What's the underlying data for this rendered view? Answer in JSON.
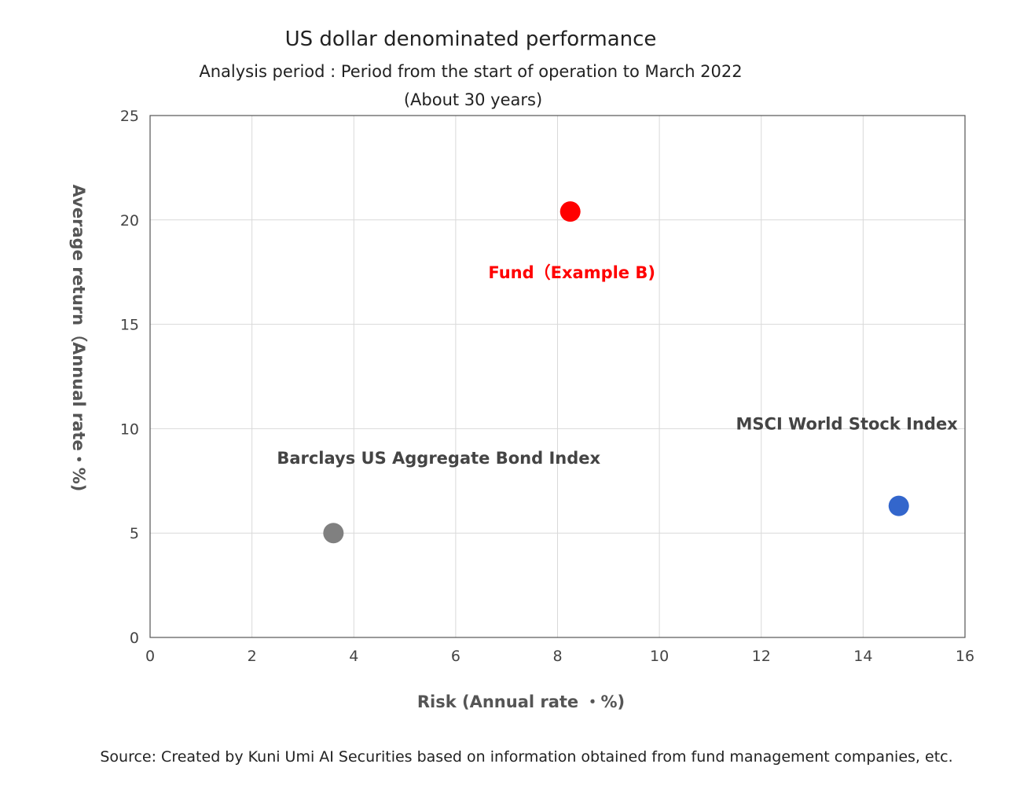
{
  "chart_data": {
    "type": "scatter",
    "title": "US dollar denominated performance",
    "subtitle_lines": [
      "Analysis period : Period from the start of operation to March 2022",
      "(About 30 years)"
    ],
    "xlabel": "Risk (Annual rate ・%)",
    "ylabel": "Average return（Annual rate・%)",
    "xlim": [
      0,
      16
    ],
    "ylim": [
      0,
      25
    ],
    "xticks": [
      0,
      2,
      4,
      6,
      8,
      10,
      12,
      14,
      16
    ],
    "yticks": [
      0,
      5,
      10,
      15,
      20,
      25
    ],
    "grid": true,
    "points": [
      {
        "label": "Fund（Example B)",
        "x": 8.25,
        "y": 20.4,
        "color": "#ff0000",
        "label_color": "#ff0000"
      },
      {
        "label": "Barclays US Aggregate Bond Index",
        "x": 3.6,
        "y": 5.0,
        "color": "#808080",
        "label_color": "#444444"
      },
      {
        "label": "MSCI World Stock Index",
        "x": 14.7,
        "y": 6.3,
        "color": "#3366cc",
        "label_color": "#444444"
      }
    ]
  },
  "source_note": "Source: Created by Kuni Umi AI Securities based on information obtained from fund management companies, etc."
}
